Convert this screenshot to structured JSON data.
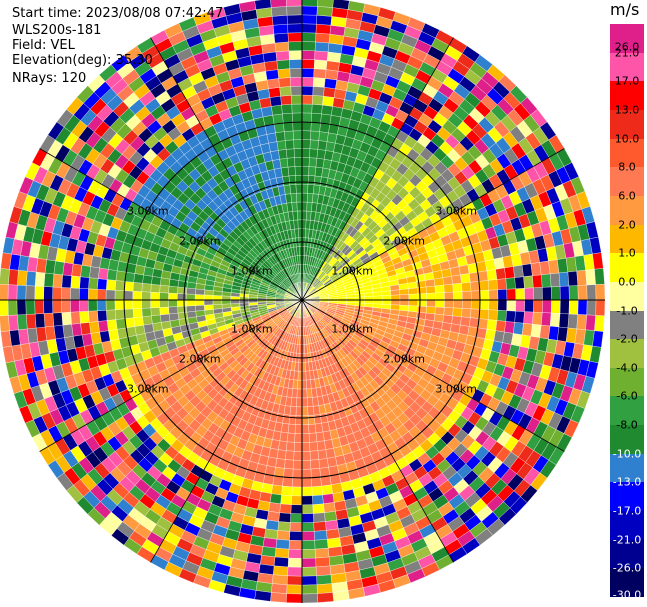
{
  "header": {
    "start_time": "Start time: 2023/08/08 07:42:47",
    "instrument": "WLS200s-181",
    "field": "Field: VEL",
    "elevation": "Elevation(deg): 35.30",
    "nrays": "NRays: 120"
  },
  "colorbar": {
    "unit": "m/s",
    "ticks": [
      "26.0",
      "21.0",
      "17.0",
      "13.0",
      "10.0",
      "8.0",
      "6.0",
      "2.0",
      "1.0",
      "0.0",
      "-1.0",
      "-2.0",
      "-4.0",
      "-6.0",
      "-8.0",
      "-10.0",
      "-13.0",
      "-17.0",
      "-21.0",
      "-26.0",
      "-30.0"
    ],
    "colors": [
      "#e0208a",
      "#ff55a8",
      "#ff0000",
      "#ee2a1a",
      "#ff5a2e",
      "#ff7a52",
      "#ff9a40",
      "#ffb800",
      "#ffff00",
      "#ffffa0",
      "#808080",
      "#a0c040",
      "#70b030",
      "#30a040",
      "#208a30",
      "#3080d0",
      "#0000ff",
      "#0000c0",
      "#000090",
      "#000060"
    ]
  },
  "range_labels": [
    "1.00km",
    "2.00km",
    "3.00km"
  ],
  "colors": {
    "ring": "#000000",
    "background": "#ffffff"
  }
}
